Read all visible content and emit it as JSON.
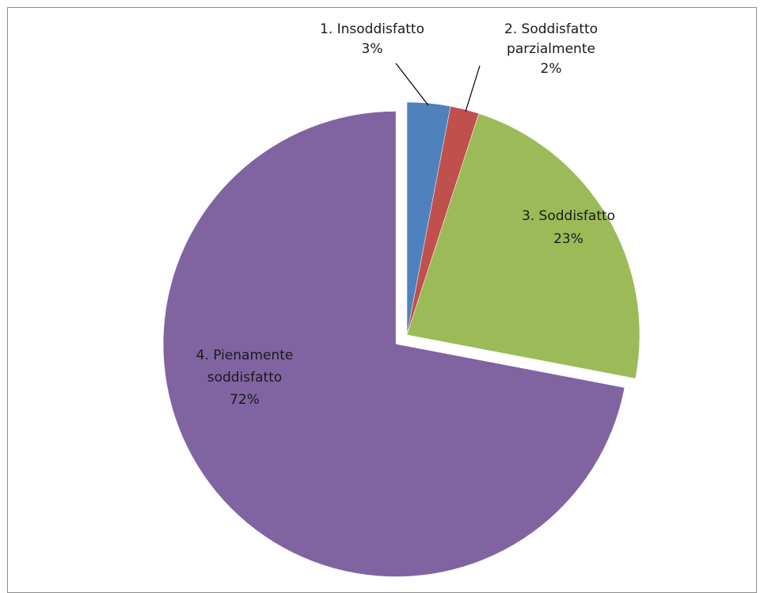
{
  "chart_data": {
    "type": "pie",
    "title": "",
    "start_angle_deg": 0,
    "direction": "clockwise",
    "exploded_category": "4. Pienamente soddisfatto",
    "series": [
      {
        "categories": [
          "1. Insoddisfatto",
          "2. Soddisfatto parzialmente",
          "3. Soddisfatto",
          "4. Pienamente soddisfatto"
        ],
        "values": [
          3,
          2,
          23,
          72
        ],
        "value_labels": [
          "3%",
          "2%",
          "23%",
          "72%"
        ],
        "colors": [
          "#4f81bd",
          "#c0504d",
          "#9bbb59",
          "#8064a2"
        ]
      }
    ],
    "legend": "none",
    "data_labels": "category and percentage"
  }
}
